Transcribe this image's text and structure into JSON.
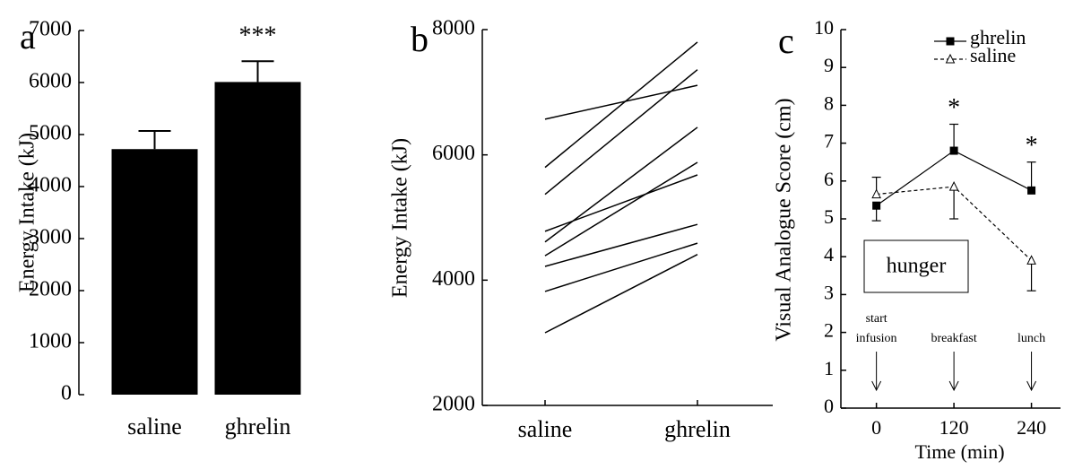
{
  "chart_data": [
    {
      "type": "bar",
      "panel_label": "a",
      "ylabel": "Energy Intake (kJ)",
      "categories": [
        "saline",
        "ghrelin"
      ],
      "values": [
        4720,
        6010
      ],
      "errors": [
        350,
        400
      ],
      "color": "#000000",
      "ylim": [
        0,
        7000
      ],
      "yticks": [
        0,
        1000,
        2000,
        3000,
        4000,
        5000,
        6000,
        7000
      ],
      "annotations": [
        {
          "text": "***",
          "category": "ghrelin"
        }
      ]
    },
    {
      "type": "paired",
      "panel_label": "b",
      "ylabel": "Energy Intake (kJ)",
      "categories": [
        "saline",
        "ghrelin"
      ],
      "color": "#000000",
      "series": [
        {
          "values": [
            6570,
            7110
          ]
        },
        {
          "values": [
            5800,
            7800
          ]
        },
        {
          "values": [
            5370,
            7360
          ]
        },
        {
          "values": [
            4780,
            5680
          ]
        },
        {
          "values": [
            4610,
            6440
          ]
        },
        {
          "values": [
            4390,
            5880
          ]
        },
        {
          "values": [
            4220,
            4890
          ]
        },
        {
          "values": [
            3820,
            4590
          ]
        },
        {
          "values": [
            3160,
            4410
          ]
        }
      ],
      "ylim": [
        2000,
        8000
      ],
      "yticks": [
        2000,
        4000,
        6000,
        8000
      ]
    },
    {
      "type": "line",
      "panel_label": "c",
      "xlabel": "Time (min)",
      "ylabel": "Visual Analogue Score (cm)",
      "x": [
        0,
        120,
        240
      ],
      "series": [
        {
          "name": "ghrelin",
          "color": "#000000",
          "marker": "square",
          "dashed": false,
          "values": [
            5.35,
            6.8,
            5.75
          ],
          "errors": [
            0.4,
            0.7,
            0.75
          ],
          "error_direction": [
            "down",
            "up",
            "up"
          ]
        },
        {
          "name": "saline",
          "color": "#000000",
          "marker": "triangle",
          "dashed": true,
          "values": [
            5.65,
            5.85,
            3.9
          ],
          "errors": [
            0.45,
            0.85,
            0.8
          ],
          "error_direction": [
            "up",
            "down",
            "down"
          ]
        }
      ],
      "xlim": [
        -55,
        285
      ],
      "xticks": [
        0,
        120,
        240
      ],
      "ylim": [
        0,
        10
      ],
      "yticks": [
        0,
        1,
        2,
        3,
        4,
        5,
        6,
        7,
        8,
        9,
        10
      ],
      "legend": "upper right",
      "annotations": [
        {
          "text": "*",
          "x": 120
        },
        {
          "text": "*",
          "x": 240
        }
      ],
      "box_label": "hunger",
      "arrow_labels": [
        {
          "text": [
            "start",
            "infusion"
          ],
          "x": 0
        },
        {
          "text": [
            "breakfast"
          ],
          "x": 120
        },
        {
          "text": [
            "lunch"
          ],
          "x": 240
        }
      ]
    }
  ]
}
